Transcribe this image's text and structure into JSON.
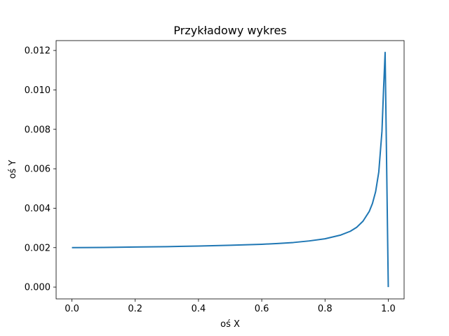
{
  "chart_data": {
    "type": "line",
    "title": "Przykładowy wykres",
    "xlabel": "oś X",
    "ylabel": "oś Y",
    "xlim": [
      -0.05,
      1.05
    ],
    "ylim": [
      -0.0006,
      0.0125
    ],
    "x_ticks": [
      0.0,
      0.2,
      0.4,
      0.6,
      0.8,
      1.0
    ],
    "x_tick_labels": [
      "0.0",
      "0.2",
      "0.4",
      "0.6",
      "0.8",
      "1.0"
    ],
    "y_ticks": [
      0.0,
      0.002,
      0.004,
      0.006,
      0.008,
      0.01,
      0.012
    ],
    "y_tick_labels": [
      "0.000",
      "0.002",
      "0.004",
      "0.006",
      "0.008",
      "0.010",
      "0.012"
    ],
    "grid": false,
    "line_color": "#1f77b4",
    "series": [
      {
        "x": [
          0.0,
          0.1,
          0.2,
          0.3,
          0.4,
          0.5,
          0.6,
          0.65,
          0.7,
          0.75,
          0.8,
          0.85,
          0.88,
          0.9,
          0.92,
          0.94,
          0.95,
          0.96,
          0.97,
          0.98,
          0.985,
          0.99,
          1.0
        ],
        "values": [
          0.002,
          0.00201,
          0.00203,
          0.00205,
          0.00208,
          0.00212,
          0.00217,
          0.00221,
          0.00226,
          0.00234,
          0.00245,
          0.00264,
          0.00283,
          0.00303,
          0.00334,
          0.00384,
          0.00424,
          0.00484,
          0.00584,
          0.0079,
          0.01,
          0.0119,
          0.0
        ]
      }
    ]
  }
}
